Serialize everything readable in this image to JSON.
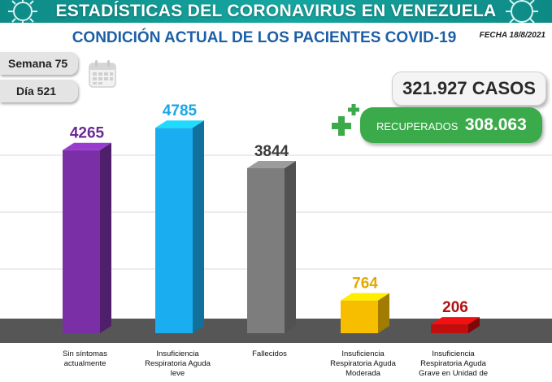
{
  "header": {
    "banner_title": "ESTADÍSTICAS DEL CORONAVIRUS EN VENEZUELA",
    "subtitle": "CONDICIÓN ACTUAL DE LOS PACIENTES COVID-19",
    "date": "FECHA 18/8/2021"
  },
  "info": {
    "week": "Semana 75",
    "day": "Día 521",
    "calendar_icon": "calendar-icon"
  },
  "summary": {
    "cases": "321.927 CASOS",
    "recovered_label": "RECUPERADOS",
    "recovered_value": "308.063",
    "plus_icon": "plus-icon"
  },
  "colors": {
    "banner": "#14a09b",
    "subtitle": "#1d5fa6",
    "recovered": "#3aaa4a",
    "floor": "#555555"
  },
  "chart_data": {
    "type": "bar",
    "title": "",
    "xlabel": "",
    "ylabel": "",
    "ylim": [
      0,
      5200
    ],
    "categories": [
      "Sin síntomas\nactualmente",
      "Insuficiencia\nRespiratoria Aguda\nleve",
      "Fallecidos",
      "Insuficiencia\nRespiratoria Aguda\nModerada",
      "Insuficiencia\nRespiratoria Aguda\nGrave en Unidad de"
    ],
    "values": [
      4265,
      4785,
      3844,
      764,
      206
    ],
    "bar_colors": [
      "#7b2fa6",
      "#1aaef0",
      "#7d7d7d",
      "#f7be00",
      "#c20d0d"
    ],
    "label_colors": [
      "#6a2a96",
      "#1aa6e6",
      "#3a3a3a",
      "#e5a800",
      "#b01212"
    ]
  }
}
